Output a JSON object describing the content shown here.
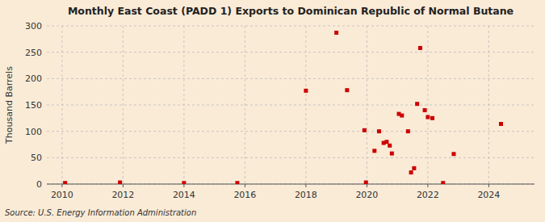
{
  "chart_data": {
    "type": "scatter",
    "title": "Monthly East Coast (PADD 1) Exports to Dominican Republic of Normal Butane",
    "ylabel": "Thousand Barrels",
    "source": "Source: U.S. Energy Information Administration",
    "color": "#cc0000",
    "marker": "square",
    "grid": true,
    "xlim": [
      2009.5,
      2025.5
    ],
    "ylim": [
      0,
      300
    ],
    "xticks": [
      2010,
      2012,
      2014,
      2016,
      2018,
      2020,
      2022,
      2024
    ],
    "yticks": [
      0,
      50,
      100,
      150,
      200,
      250,
      300
    ],
    "x": [
      2010.1,
      2011.9,
      2014.0,
      2015.75,
      2018.0,
      2019.0,
      2019.35,
      2019.92,
      2019.97,
      2020.25,
      2020.4,
      2020.55,
      2020.65,
      2020.75,
      2020.82,
      2021.05,
      2021.15,
      2021.35,
      2021.45,
      2021.55,
      2021.65,
      2021.75,
      2021.9,
      2022.0,
      2022.15,
      2022.5,
      2022.85,
      2024.4
    ],
    "values": [
      2,
      3,
      2,
      2,
      177,
      287,
      178,
      102,
      3,
      63,
      100,
      78,
      80,
      73,
      58,
      133,
      130,
      100,
      22,
      30,
      152,
      258,
      140,
      127,
      125,
      2,
      57,
      114
    ]
  }
}
